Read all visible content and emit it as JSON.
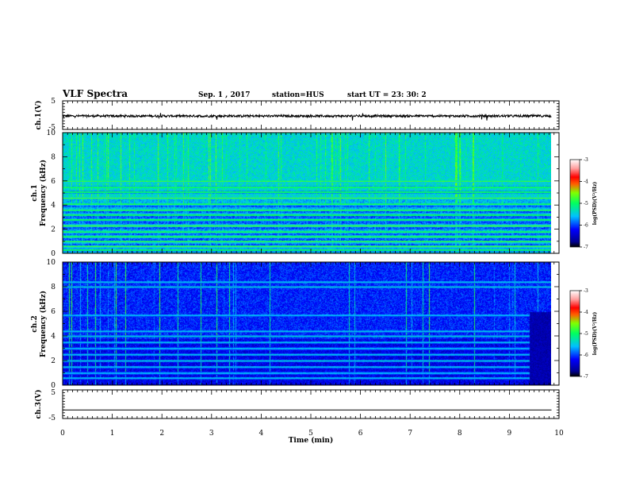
{
  "header": {
    "title": "VLF Spectra",
    "date": "Sep. 1  , 2017",
    "station": "station=HUS",
    "start": "start  UT  =   23: 30: 2"
  },
  "chart_data": [
    {
      "type": "line",
      "name": "ch1-waveform",
      "ylabel": "ch.1(V)",
      "ylim": [
        -5,
        5
      ],
      "yticks": [
        "5",
        "-5"
      ],
      "xlim": [
        0,
        10
      ],
      "trace_end_min": 9.85,
      "level_v": -0.3,
      "noise_amplitude_v": 0.4
    },
    {
      "type": "heatmap",
      "name": "ch1-spectrogram",
      "ylabel_top": "ch.1",
      "ylabel": "Frequency  (kHz)",
      "xlim": [
        0,
        10
      ],
      "ylim": [
        0,
        10
      ],
      "yticks": [
        "0",
        "2",
        "4",
        "6",
        "8",
        "10"
      ],
      "data_end_min": 9.85,
      "log_psd_range": [
        -7,
        -3
      ],
      "horizontal_bands_khz": [
        0.3,
        0.6,
        1.0,
        1.4,
        1.8,
        2.3,
        2.8,
        3.2,
        3.6,
        4.1,
        4.6,
        5.1,
        5.5,
        6.0
      ],
      "colorbar": {
        "ticks": [
          "-3",
          "-4",
          "-5",
          "-6",
          "-7"
        ],
        "label": "log(PSD)(V²/Hz)"
      }
    },
    {
      "type": "heatmap",
      "name": "ch2-spectrogram",
      "ylabel_top": "ch.2",
      "ylabel": "Frequency  (kHz)",
      "xlim": [
        0,
        10
      ],
      "ylim": [
        0,
        10
      ],
      "yticks": [
        "0",
        "2",
        "4",
        "6",
        "8",
        "10"
      ],
      "data_end_min": 9.85,
      "log_psd_range": [
        -7,
        -3
      ],
      "horizontal_bands_khz": [
        0.6,
        1.0,
        1.5,
        2.0,
        2.5,
        3.0,
        3.5,
        4.0,
        4.4,
        5.7,
        8.0,
        8.4
      ],
      "colorbar": {
        "ticks": [
          "-3",
          "-4",
          "-5",
          "-6",
          "-7"
        ],
        "label": "log(PSD)(V²/Hz)"
      }
    },
    {
      "type": "line",
      "name": "ch3-waveform",
      "ylabel": "ch.3(V)",
      "ylim": [
        -5,
        5
      ],
      "yticks": [
        "5",
        "-5"
      ],
      "xlim": [
        0,
        10
      ],
      "trace_end_min": 9.85,
      "level_v": -2,
      "noise_amplitude_v": 0
    }
  ],
  "x_axis": {
    "label": "Time  (min)",
    "ticks": [
      "0",
      "1",
      "2",
      "3",
      "4",
      "5",
      "6",
      "7",
      "8",
      "9",
      "10"
    ]
  }
}
